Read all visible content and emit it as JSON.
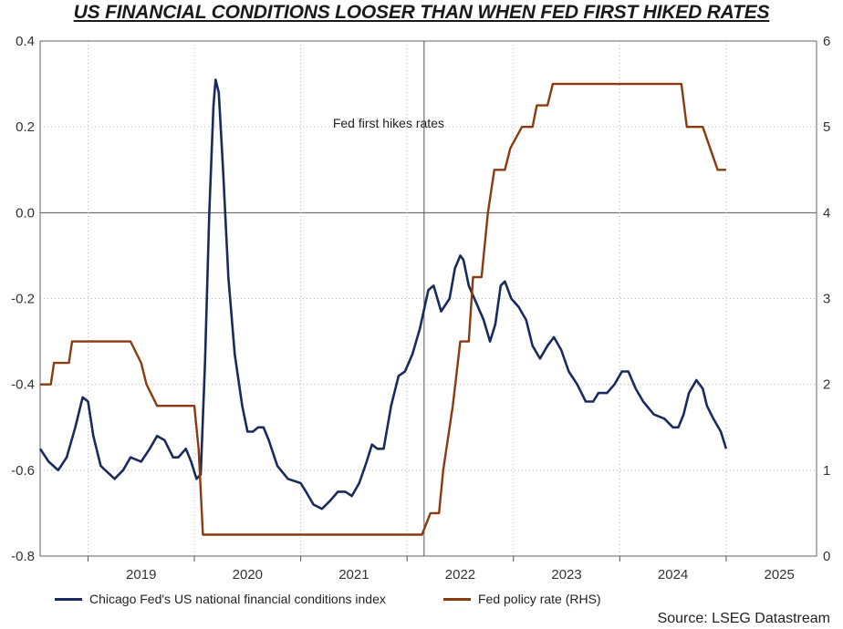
{
  "title": "US FINANCIAL CONDITIONS LOOSER THAN WHEN FED FIRST HIKED RATES",
  "source": "Source: LSEG Datastream",
  "chart_data": {
    "type": "line",
    "x_ticks": [
      "2019",
      "2020",
      "2021",
      "2022",
      "2023",
      "2024",
      "2025"
    ],
    "xlim": [
      2018.55,
      2025.85
    ],
    "left_axis": {
      "ylim": [
        -0.8,
        0.4
      ],
      "ticks": [
        "0.4",
        "0.2",
        "0.0",
        "-0.2",
        "-0.4",
        "-0.6",
        "-0.8"
      ]
    },
    "right_axis": {
      "ylim": [
        0,
        6
      ],
      "ticks": [
        "6",
        "5",
        "4",
        "3",
        "2",
        "1",
        "0"
      ]
    },
    "annotation": {
      "text": "Fed first hikes rates",
      "x": 2022.16
    },
    "grid": true,
    "legend_position": "bottom",
    "series": [
      {
        "name": "Chicago Fed's US national financial conditions index",
        "axis": "left",
        "color": "#1b2a5c",
        "points": [
          [
            2018.55,
            -0.55
          ],
          [
            2018.63,
            -0.58
          ],
          [
            2018.72,
            -0.6
          ],
          [
            2018.8,
            -0.57
          ],
          [
            2018.88,
            -0.5
          ],
          [
            2018.95,
            -0.43
          ],
          [
            2019.0,
            -0.44
          ],
          [
            2019.05,
            -0.52
          ],
          [
            2019.12,
            -0.59
          ],
          [
            2019.25,
            -0.62
          ],
          [
            2019.33,
            -0.6
          ],
          [
            2019.4,
            -0.57
          ],
          [
            2019.5,
            -0.58
          ],
          [
            2019.58,
            -0.55
          ],
          [
            2019.65,
            -0.52
          ],
          [
            2019.72,
            -0.53
          ],
          [
            2019.8,
            -0.57
          ],
          [
            2019.85,
            -0.57
          ],
          [
            2019.92,
            -0.55
          ],
          [
            2019.97,
            -0.58
          ],
          [
            2020.02,
            -0.62
          ],
          [
            2020.06,
            -0.61
          ],
          [
            2020.1,
            -0.35
          ],
          [
            2020.14,
            0.0
          ],
          [
            2020.18,
            0.25
          ],
          [
            2020.2,
            0.31
          ],
          [
            2020.23,
            0.28
          ],
          [
            2020.27,
            0.1
          ],
          [
            2020.32,
            -0.15
          ],
          [
            2020.38,
            -0.33
          ],
          [
            2020.45,
            -0.45
          ],
          [
            2020.5,
            -0.51
          ],
          [
            2020.55,
            -0.51
          ],
          [
            2020.6,
            -0.5
          ],
          [
            2020.65,
            -0.5
          ],
          [
            2020.7,
            -0.53
          ],
          [
            2020.78,
            -0.59
          ],
          [
            2020.88,
            -0.62
          ],
          [
            2021.0,
            -0.63
          ],
          [
            2021.05,
            -0.65
          ],
          [
            2021.12,
            -0.68
          ],
          [
            2021.2,
            -0.69
          ],
          [
            2021.28,
            -0.67
          ],
          [
            2021.35,
            -0.65
          ],
          [
            2021.42,
            -0.65
          ],
          [
            2021.48,
            -0.66
          ],
          [
            2021.55,
            -0.63
          ],
          [
            2021.62,
            -0.58
          ],
          [
            2021.67,
            -0.54
          ],
          [
            2021.72,
            -0.55
          ],
          [
            2021.78,
            -0.55
          ],
          [
            2021.85,
            -0.45
          ],
          [
            2021.92,
            -0.38
          ],
          [
            2021.98,
            -0.37
          ],
          [
            2022.05,
            -0.33
          ],
          [
            2022.12,
            -0.27
          ],
          [
            2022.2,
            -0.18
          ],
          [
            2022.25,
            -0.17
          ],
          [
            2022.32,
            -0.23
          ],
          [
            2022.4,
            -0.2
          ],
          [
            2022.45,
            -0.13
          ],
          [
            2022.5,
            -0.1
          ],
          [
            2022.53,
            -0.11
          ],
          [
            2022.58,
            -0.17
          ],
          [
            2022.65,
            -0.21
          ],
          [
            2022.72,
            -0.25
          ],
          [
            2022.78,
            -0.3
          ],
          [
            2022.83,
            -0.26
          ],
          [
            2022.88,
            -0.17
          ],
          [
            2022.92,
            -0.16
          ],
          [
            2022.98,
            -0.2
          ],
          [
            2023.05,
            -0.22
          ],
          [
            2023.12,
            -0.25
          ],
          [
            2023.18,
            -0.31
          ],
          [
            2023.25,
            -0.34
          ],
          [
            2023.32,
            -0.31
          ],
          [
            2023.38,
            -0.29
          ],
          [
            2023.45,
            -0.32
          ],
          [
            2023.52,
            -0.37
          ],
          [
            2023.6,
            -0.4
          ],
          [
            2023.68,
            -0.44
          ],
          [
            2023.75,
            -0.44
          ],
          [
            2023.8,
            -0.42
          ],
          [
            2023.88,
            -0.42
          ],
          [
            2023.95,
            -0.4
          ],
          [
            2024.02,
            -0.37
          ],
          [
            2024.08,
            -0.37
          ],
          [
            2024.15,
            -0.41
          ],
          [
            2024.22,
            -0.44
          ],
          [
            2024.32,
            -0.47
          ],
          [
            2024.42,
            -0.48
          ],
          [
            2024.5,
            -0.5
          ],
          [
            2024.55,
            -0.5
          ],
          [
            2024.6,
            -0.47
          ],
          [
            2024.65,
            -0.42
          ],
          [
            2024.72,
            -0.39
          ],
          [
            2024.78,
            -0.41
          ],
          [
            2024.82,
            -0.45
          ],
          [
            2024.88,
            -0.48
          ],
          [
            2024.95,
            -0.51
          ],
          [
            2025.0,
            -0.55
          ]
        ]
      },
      {
        "name": "Fed policy rate (RHS)",
        "axis": "right",
        "color": "#8b3a0f",
        "points": [
          [
            2018.55,
            2.0
          ],
          [
            2018.65,
            2.0
          ],
          [
            2018.68,
            2.25
          ],
          [
            2018.82,
            2.25
          ],
          [
            2018.85,
            2.5
          ],
          [
            2019.4,
            2.5
          ],
          [
            2019.5,
            2.25
          ],
          [
            2019.55,
            2.0
          ],
          [
            2019.65,
            1.75
          ],
          [
            2019.88,
            1.75
          ],
          [
            2020.0,
            1.75
          ],
          [
            2020.04,
            1.25
          ],
          [
            2020.08,
            0.25
          ],
          [
            2022.14,
            0.25
          ],
          [
            2022.22,
            0.5
          ],
          [
            2022.3,
            0.5
          ],
          [
            2022.34,
            1.0
          ],
          [
            2022.43,
            1.75
          ],
          [
            2022.5,
            2.5
          ],
          [
            2022.58,
            2.5
          ],
          [
            2022.62,
            3.25
          ],
          [
            2022.7,
            3.25
          ],
          [
            2022.76,
            4.0
          ],
          [
            2022.82,
            4.5
          ],
          [
            2022.92,
            4.5
          ],
          [
            2022.97,
            4.75
          ],
          [
            2023.08,
            5.0
          ],
          [
            2023.18,
            5.0
          ],
          [
            2023.22,
            5.25
          ],
          [
            2023.32,
            5.25
          ],
          [
            2023.37,
            5.5
          ],
          [
            2024.58,
            5.5
          ],
          [
            2024.63,
            5.0
          ],
          [
            2024.78,
            5.0
          ],
          [
            2024.85,
            4.75
          ],
          [
            2024.92,
            4.5
          ],
          [
            2025.0,
            4.5
          ]
        ]
      }
    ]
  }
}
